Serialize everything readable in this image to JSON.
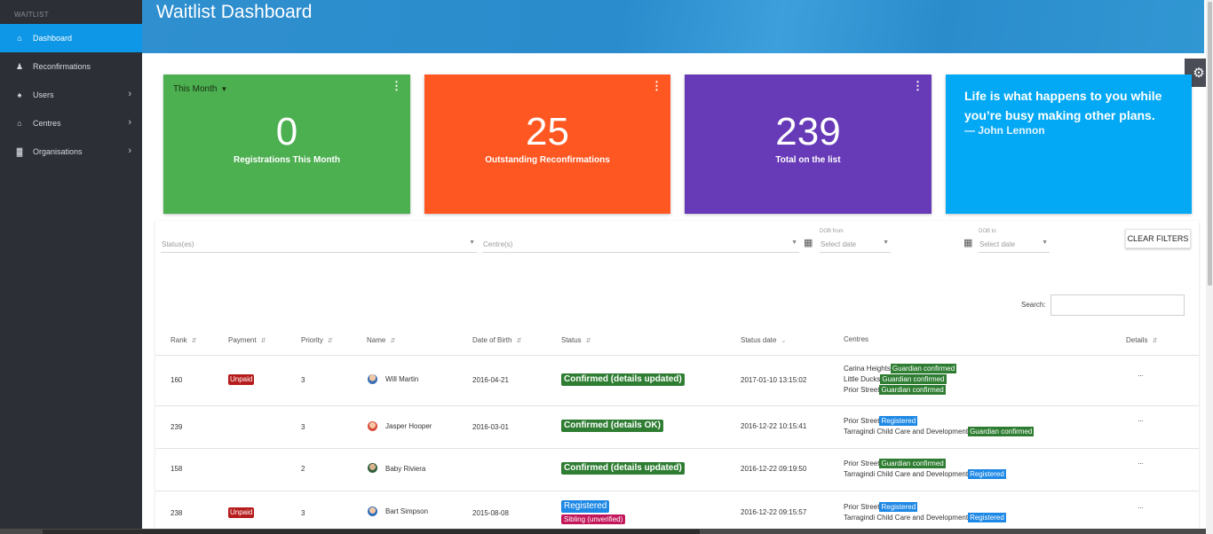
{
  "sidebar": {
    "heading": "WAITLIST",
    "items": [
      {
        "label": "Dashboard",
        "icon": "home-icon"
      },
      {
        "label": "Reconfirmations",
        "icon": "user-check-icon"
      },
      {
        "label": "Users",
        "icon": "users-icon"
      },
      {
        "label": "Centres",
        "icon": "home-icon"
      },
      {
        "label": "Organisations",
        "icon": "building-icon"
      }
    ]
  },
  "header": {
    "title": "Waitlist Dashboard"
  },
  "cards": {
    "month": {
      "period": "This Month",
      "value": "0",
      "label": "Registrations This Month",
      "color": "#4caf50"
    },
    "reconf": {
      "value": "25",
      "label": "Outstanding Reconfirmations",
      "color": "#ff5722"
    },
    "total": {
      "value": "239",
      "label": "Total on the list",
      "color": "#673ab7"
    },
    "quote": {
      "text": "Life is what happens to you while you’re busy making other plans.",
      "author": "— John Lennon",
      "color": "#03a9f4"
    }
  },
  "filters": {
    "status_placeholder": "Status(es)",
    "centre_placeholder": "Centre(s)",
    "dob_from_label": "DOB from",
    "dob_to_label": "DOB to",
    "date_placeholder": "Select date",
    "clear_label": "CLEAR FILTERS",
    "search_label": "Search:"
  },
  "table": {
    "columns": [
      "Rank",
      "Payment",
      "Priority",
      "Name",
      "Date of Birth",
      "Status",
      "Status date",
      "Centres",
      "Details"
    ],
    "rows": [
      {
        "rank": "160",
        "payment": "Unpaid",
        "priority": "3",
        "name": "Will Martin",
        "dob": "2016-04-21",
        "status": "Confirmed (details updated)",
        "status_date": "2017-01-10 13:15:02",
        "centres": [
          {
            "name": "Carina Heights",
            "tag": "Guardian confirmed"
          },
          {
            "name": "Little Ducks",
            "tag": "Guardian confirmed"
          },
          {
            "name": "Prior Street",
            "tag": "Guardian confirmed"
          }
        ],
        "details": "···"
      },
      {
        "rank": "239",
        "payment": "",
        "priority": "3",
        "name": "Jasper Hooper",
        "dob": "2016-03-01",
        "status": "Confirmed (details OK)",
        "status_date": "2016-12-22 10:15:41",
        "centres": [
          {
            "name": "Prior Street",
            "tag": "Registered"
          },
          {
            "name": "Tarragindi Child Care and Development",
            "tag": "Guardian confirmed"
          }
        ],
        "details": "···"
      },
      {
        "rank": "158",
        "payment": "",
        "priority": "2",
        "name": "Baby Riviera",
        "dob": "",
        "status": "Confirmed (details updated)",
        "status_date": "2016-12-22 09:19:50",
        "centres": [
          {
            "name": "Prior Street",
            "tag": "Guardian confirmed"
          },
          {
            "name": "Tarragindi Child Care and Development",
            "tag": "Registered"
          }
        ],
        "details": "···"
      },
      {
        "rank": "238",
        "payment": "Unpaid",
        "priority": "3",
        "name": "Bart Simpson",
        "dob": "2015-08-08",
        "status": "Registered",
        "status_extra": "Sibling (unverified)",
        "status_date": "2016-12-22 09:15:57",
        "centres": [
          {
            "name": "Prior Street",
            "tag": "Registered"
          },
          {
            "name": "Tarragindi Child Care and Development",
            "tag": "Registered"
          }
        ],
        "details": "···"
      }
    ]
  }
}
